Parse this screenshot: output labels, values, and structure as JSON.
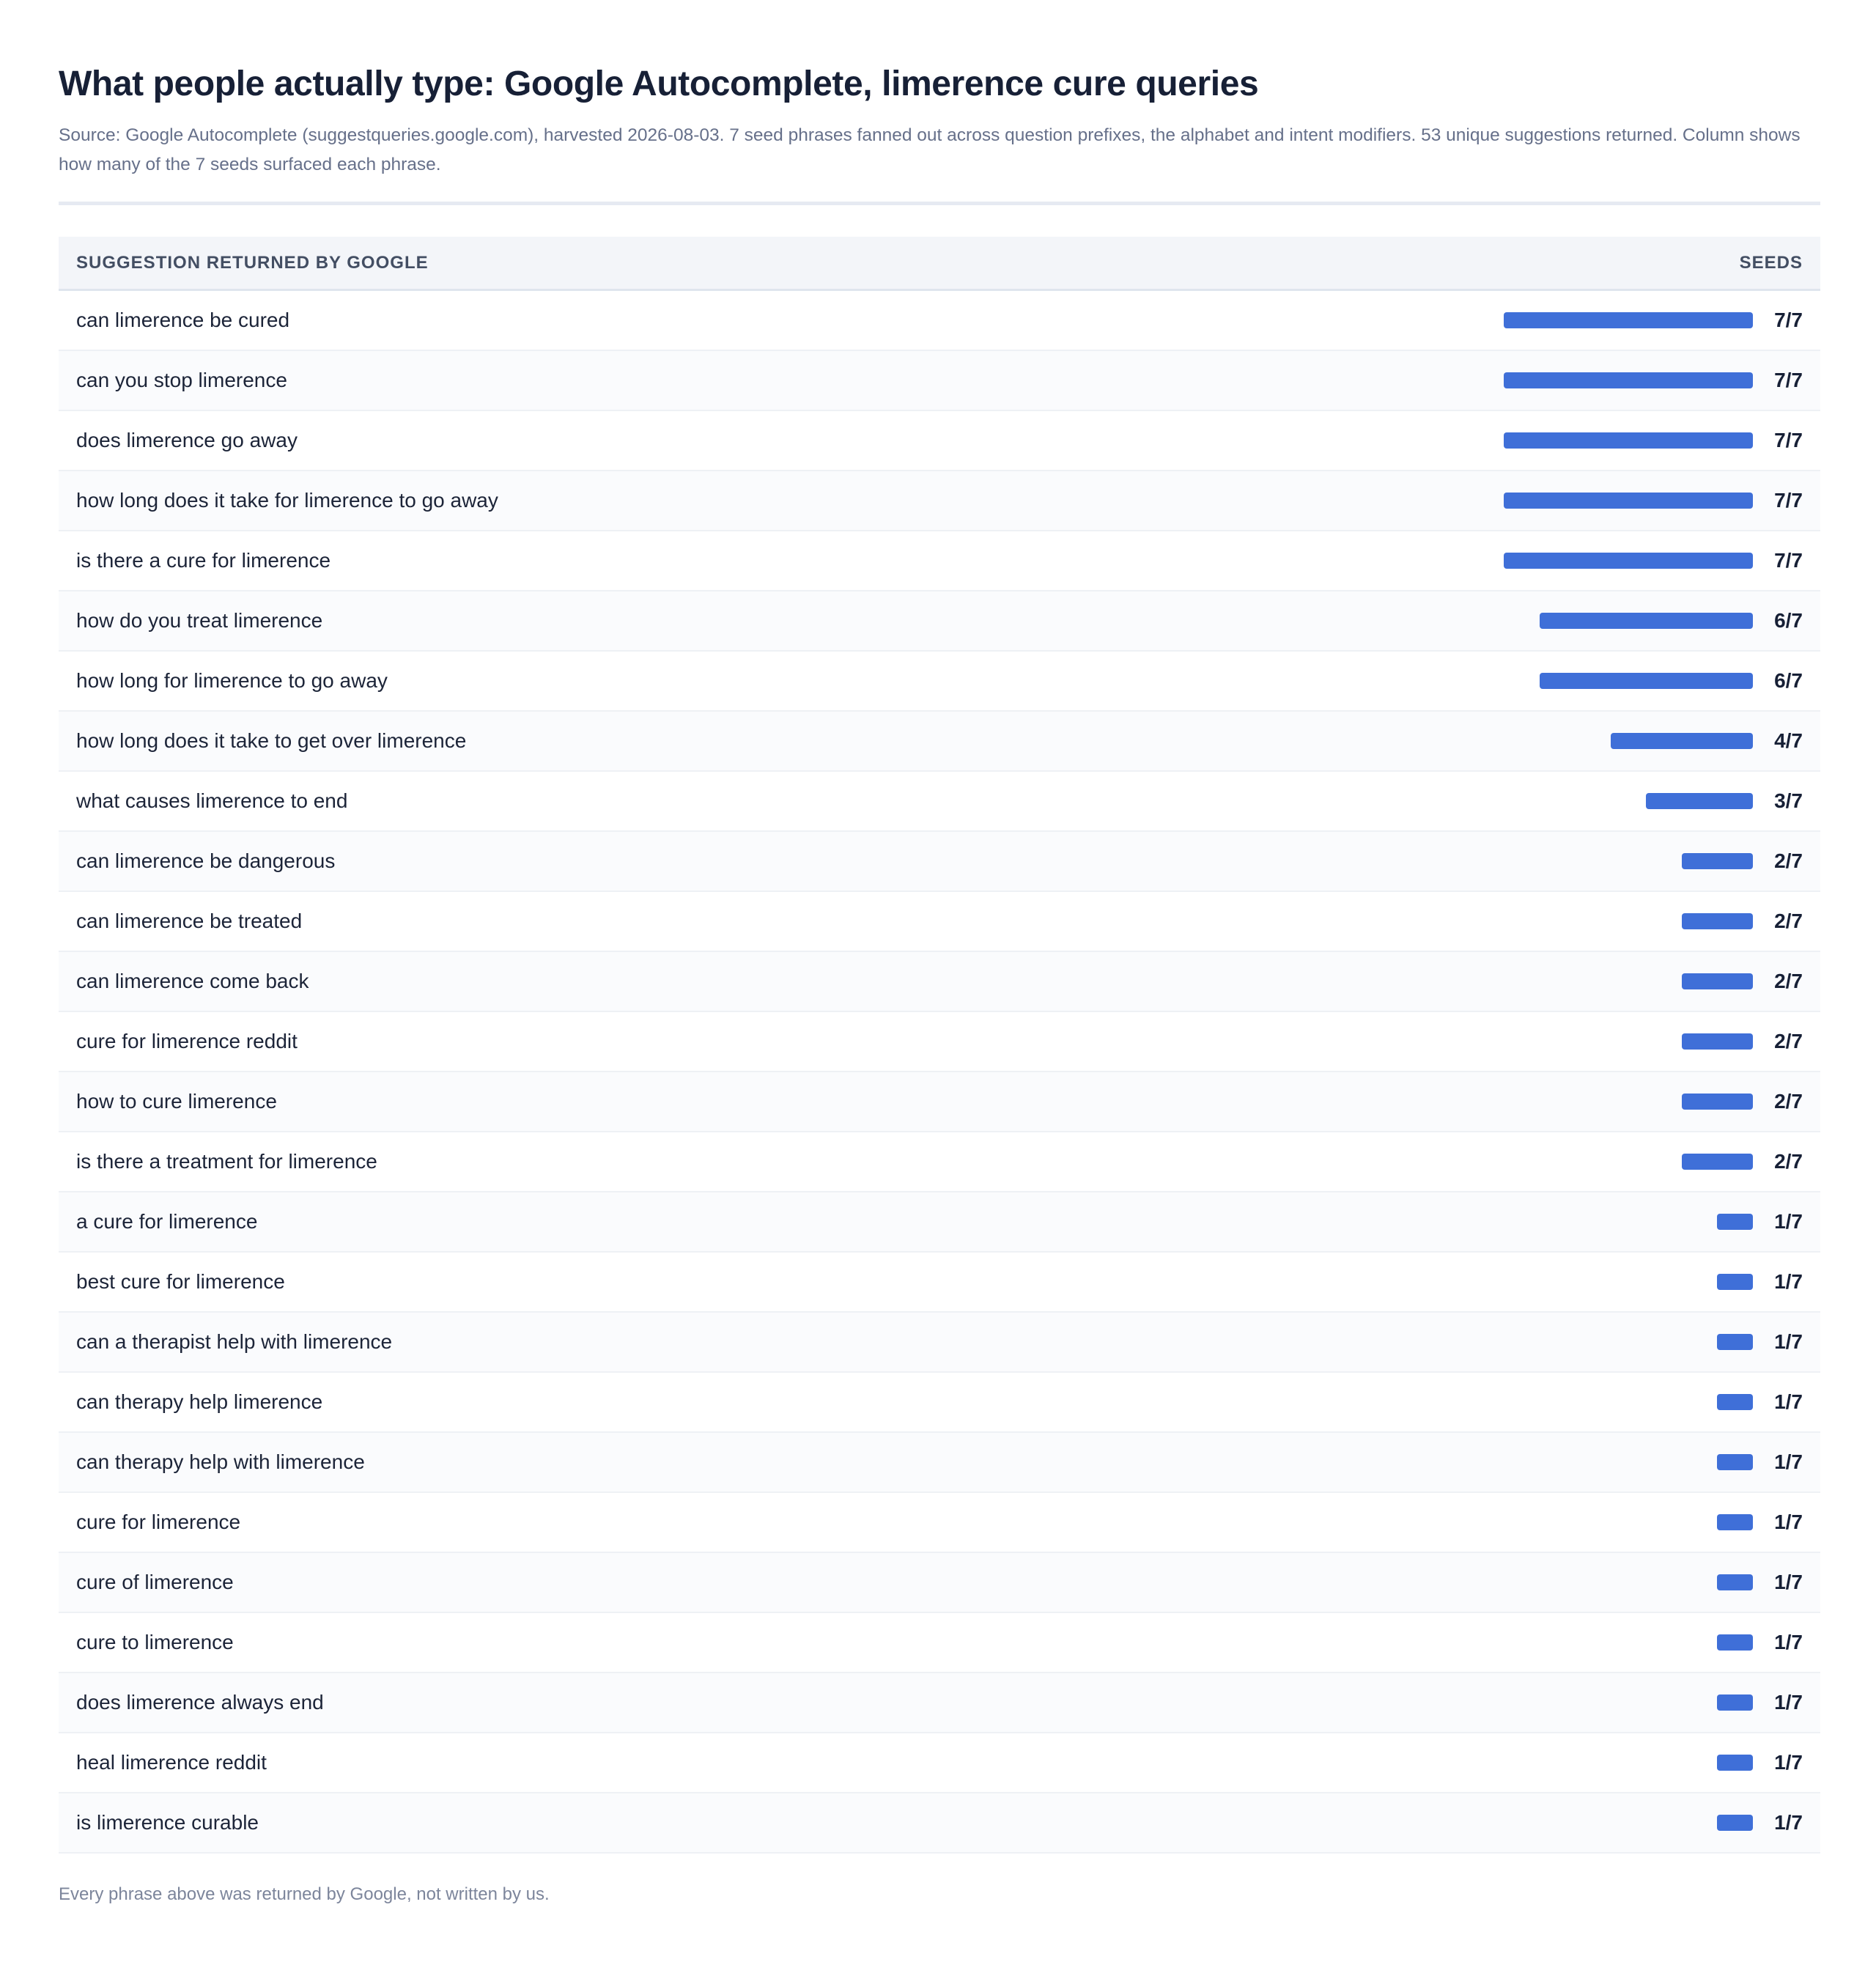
{
  "page": {
    "title": "What people actually type: Google Autocomplete, limerence cure queries",
    "subtitle": "Source: Google Autocomplete (suggestqueries.google.com), harvested 2026-08-03. 7 seed phrases fanned out across question prefixes, the alphabet and intent modifiers. 53 unique suggestions returned. Column shows how many of the 7 seeds surfaced each phrase.",
    "footnote": "Every phrase above was returned by Google, not written by us."
  },
  "table": {
    "col_suggestion": "SUGGESTION RETURNED BY GOOGLE",
    "col_seeds": "SEEDS"
  },
  "colors": {
    "bar": "#3f6fd8"
  },
  "chart_data": {
    "type": "bar",
    "orientation": "horizontal",
    "max": 7,
    "categories": [
      "can limerence be cured",
      "can you stop limerence",
      "does limerence go away",
      "how long does it take for limerence to go away",
      "is there a cure for limerence",
      "how do you treat limerence",
      "how long for limerence to go away",
      "how long does it take to get over limerence",
      "what causes limerence to end",
      "can limerence be dangerous",
      "can limerence be treated",
      "can limerence come back",
      "cure for limerence reddit",
      "how to cure limerence",
      "is there a treatment for limerence",
      "a cure for limerence",
      "best cure for limerence",
      "can a therapist help with limerence",
      "can therapy help limerence",
      "can therapy help with limerence",
      "cure for limerence",
      "cure of limerence",
      "cure to limerence",
      "does limerence always end",
      "heal limerence reddit",
      "is limerence curable"
    ],
    "values": [
      7,
      7,
      7,
      7,
      7,
      6,
      6,
      4,
      3,
      2,
      2,
      2,
      2,
      2,
      2,
      1,
      1,
      1,
      1,
      1,
      1,
      1,
      1,
      1,
      1,
      1
    ],
    "labels": [
      "7/7",
      "7/7",
      "7/7",
      "7/7",
      "7/7",
      "6/7",
      "6/7",
      "4/7",
      "3/7",
      "2/7",
      "2/7",
      "2/7",
      "2/7",
      "2/7",
      "2/7",
      "1/7",
      "1/7",
      "1/7",
      "1/7",
      "1/7",
      "1/7",
      "1/7",
      "1/7",
      "1/7",
      "1/7",
      "1/7"
    ]
  }
}
